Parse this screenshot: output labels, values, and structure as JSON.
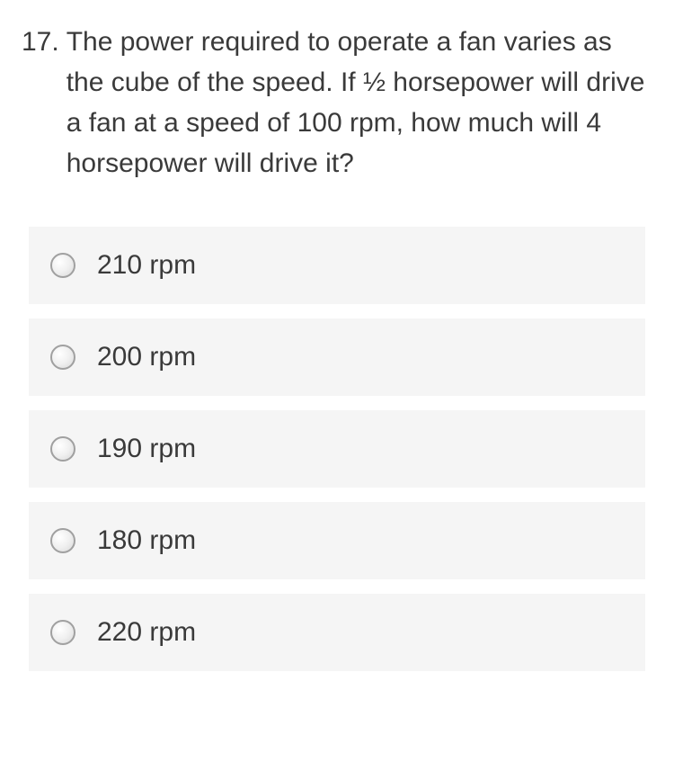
{
  "question": {
    "number": "17.",
    "text": "The power required to operate a fan varies as the cube of the speed. If ½ horsepower will drive a fan at a speed of 100 rpm, how much will 4 horsepower will drive it?",
    "text_color": "#3a3a3a",
    "font_size": 30
  },
  "options": [
    {
      "label": "210 rpm"
    },
    {
      "label": "200 rpm"
    },
    {
      "label": "190 rpm"
    },
    {
      "label": "180 rpm"
    },
    {
      "label": "220 rpm"
    }
  ],
  "styling": {
    "background_color": "#ffffff",
    "option_background": "#f5f5f5",
    "radio_border_color": "#a0a0a0",
    "option_font_size": 30,
    "option_spacing": 16
  }
}
